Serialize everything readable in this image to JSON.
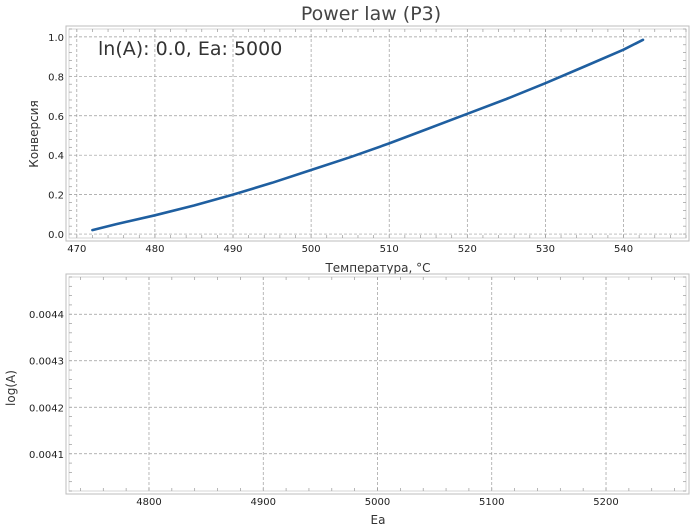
{
  "chart_data": [
    {
      "type": "line",
      "title": "Power law (P3)",
      "annotation": "ln(A): 0.0, Ea: 5000",
      "xlabel": "Температура, °C",
      "ylabel": "Конверсия",
      "xlim": [
        469,
        548
      ],
      "ylim": [
        -0.02,
        1.04
      ],
      "xticks": [
        470,
        480,
        490,
        500,
        510,
        520,
        530,
        540
      ],
      "yticks": [
        0.0,
        0.2,
        0.4,
        0.6,
        0.8,
        1.0
      ],
      "ytick_labels": [
        "0.0",
        "0.2",
        "0.4",
        "0.6",
        "0.8",
        "1.0"
      ],
      "grid": true,
      "line_color": "#1f5fa0",
      "series": [
        {
          "x": [
            472,
            475,
            480,
            485,
            490,
            495,
            500,
            505,
            510,
            515,
            520,
            525,
            530,
            535,
            540,
            542.5
          ],
          "y": [
            0.02,
            0.05,
            0.095,
            0.145,
            0.2,
            0.26,
            0.325,
            0.39,
            0.46,
            0.535,
            0.61,
            0.685,
            0.765,
            0.85,
            0.935,
            0.985
          ]
        }
      ]
    },
    {
      "type": "scatter",
      "xlabel": "Ea",
      "ylabel": "log(A)",
      "xlim": [
        4730,
        5270
      ],
      "ylim": [
        0.00402,
        0.00448
      ],
      "xticks": [
        4800,
        4900,
        5000,
        5100,
        5200
      ],
      "yticks": [
        0.0041,
        0.0042,
        0.0043,
        0.0044
      ],
      "ytick_labels": [
        "0.0041",
        "0.0042",
        "0.0043",
        "0.0044"
      ],
      "grid": true,
      "series": []
    }
  ]
}
